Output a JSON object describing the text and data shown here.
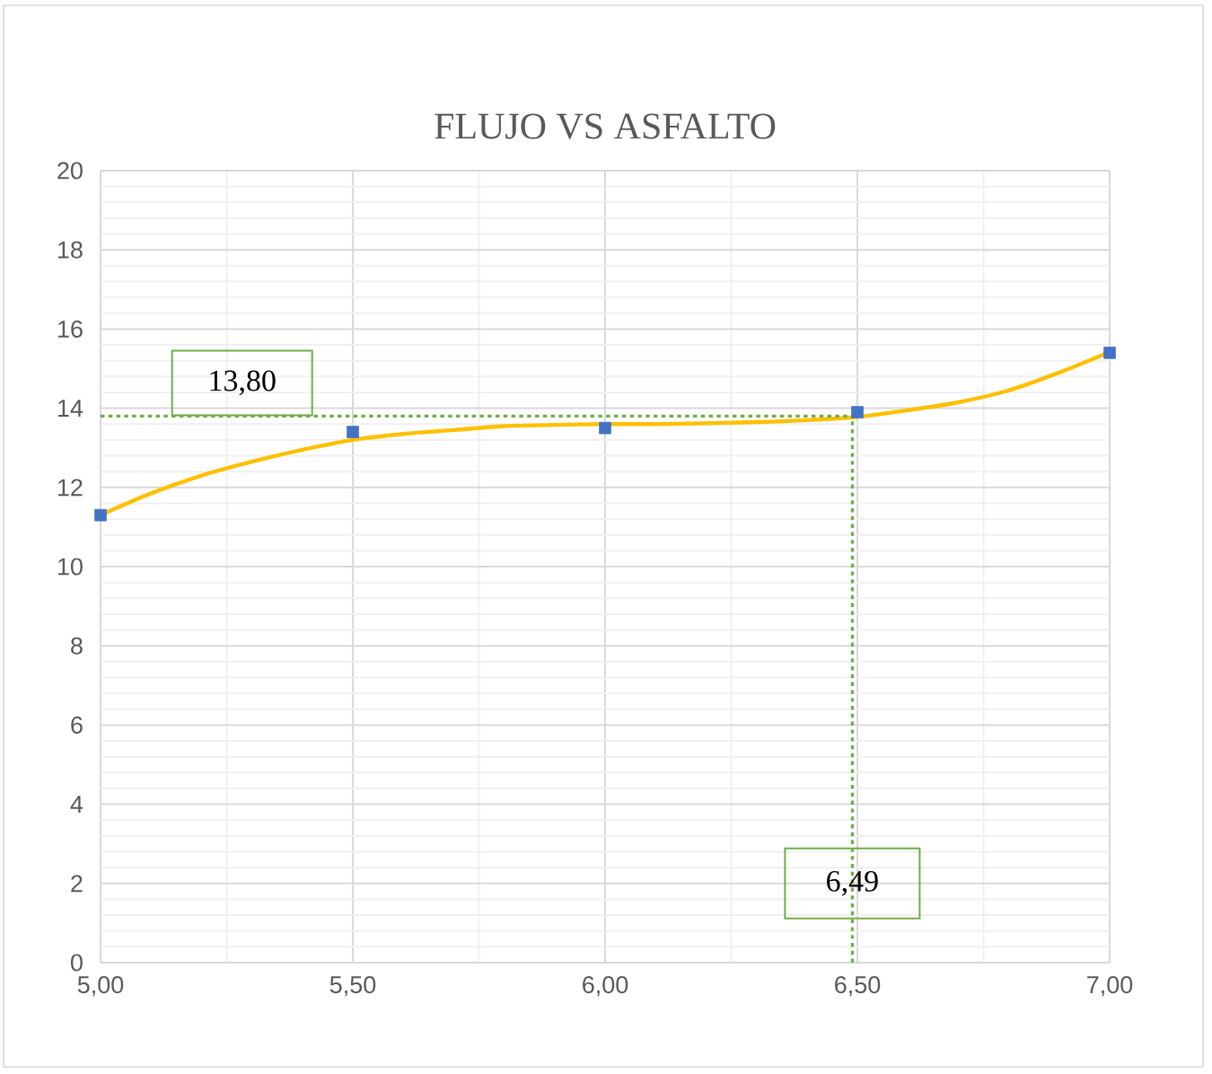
{
  "chart_data": {
    "type": "scatter",
    "title": "FLUJO VS ASFALTO",
    "series": [
      {
        "color": "#4472c4",
        "marker": "square",
        "x": [
          5.0,
          5.5,
          6.0,
          6.5,
          7.0
        ],
        "values": [
          11.3,
          13.4,
          13.5,
          13.9,
          15.4
        ]
      },
      {
        "type": "line",
        "color": "#ffc000",
        "marker": "none",
        "line_style": "solid",
        "x": [
          5.0,
          5.1,
          5.2,
          5.3,
          5.4,
          5.5,
          5.6,
          5.7,
          5.8,
          5.9,
          6.0,
          6.1,
          6.2,
          6.3,
          6.4,
          6.5,
          6.6,
          6.7,
          6.8,
          6.9,
          7.0
        ],
        "values": [
          11.3,
          11.85,
          12.3,
          12.65,
          12.95,
          13.2,
          13.35,
          13.45,
          13.55,
          13.58,
          13.6,
          13.6,
          13.62,
          13.65,
          13.7,
          13.78,
          13.95,
          14.15,
          14.45,
          14.9,
          15.42
        ]
      }
    ],
    "xlim": [
      5,
      7
    ],
    "xticks": [
      {
        "value": 5,
        "label": "5,00"
      },
      {
        "value": 5.5,
        "label": "5,50"
      },
      {
        "value": 6,
        "label": "6,00"
      },
      {
        "value": 6.5,
        "label": "6,50"
      },
      {
        "value": 7,
        "label": "7,00"
      }
    ],
    "ylim": [
      0,
      20
    ],
    "yticks": [
      0,
      2,
      4,
      6,
      8,
      10,
      12,
      14,
      16,
      18,
      20
    ],
    "ref_lines": [
      {
        "axis": "y",
        "value": 13.8,
        "label": "13,80",
        "color": "#70ad47",
        "line_style": "dotted"
      },
      {
        "axis": "x",
        "value": 6.49,
        "label": "6,49",
        "color": "#70ad47",
        "line_style": "dotted"
      }
    ],
    "grid": true
  }
}
